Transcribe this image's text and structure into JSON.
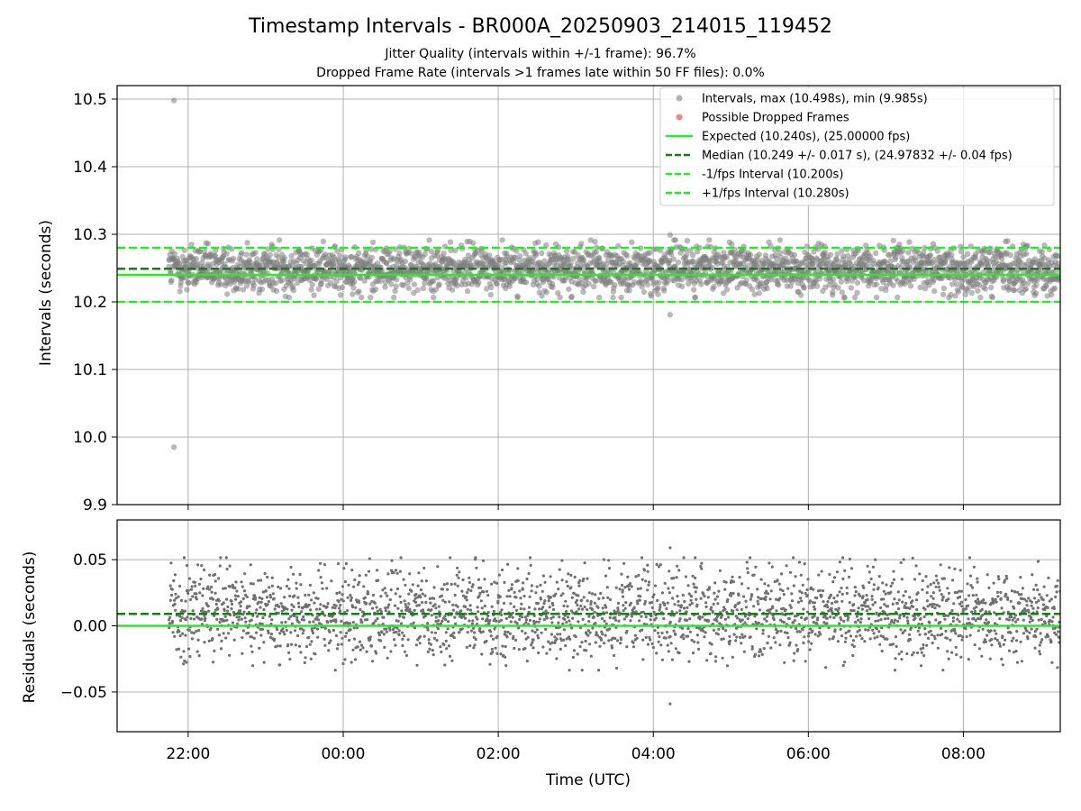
{
  "chart_data": [
    {
      "type": "scatter",
      "title": "Timestamp Intervals - BR000A_20250903_214015_119452",
      "subtitle_1": "Jitter Quality (intervals within +/-1 frame): 96.7%",
      "subtitle_2": "Dropped Frame Rate (intervals >1 frames late within 50 FF files): 0.0%",
      "ylabel": "Intervals (seconds)",
      "xlim": [
        "21:05",
        "09:15"
      ],
      "ylim": [
        9.9,
        10.52
      ],
      "yticks": [
        "9.9",
        "10.0",
        "10.1",
        "10.2",
        "10.3",
        "10.4",
        "10.5"
      ],
      "grid": true,
      "legend_position": "top-right",
      "series": [
        {
          "name": "Intervals, max (10.498s), min (9.985s)",
          "kind": "scatter",
          "color": "#808080",
          "x_start": "21:45",
          "x_end": "09:15",
          "center": 10.249,
          "spread": 0.017,
          "outliers": [
            {
              "x": "21:49",
              "y": 10.498
            },
            {
              "x": "21:49",
              "y": 9.985
            },
            {
              "x": "04:13",
              "y": 10.299
            },
            {
              "x": "04:13",
              "y": 10.181
            }
          ]
        },
        {
          "name": "Possible Dropped Frames",
          "kind": "scatter",
          "color": "#f07070",
          "points": []
        },
        {
          "name": "Expected (10.240s), (25.00000 fps)",
          "kind": "hline",
          "y": 10.24,
          "color": "#22ee22",
          "dash": "solid"
        },
        {
          "name": "Median (10.249 +/- 0.017 s), (24.97832 +/- 0.04 fps)",
          "kind": "hline",
          "y": 10.249,
          "color": "#1a7a1a",
          "dash": "dashed"
        },
        {
          "name": "-1/fps Interval (10.200s)",
          "kind": "hline",
          "y": 10.2,
          "color": "#22ee22",
          "dash": "dashed"
        },
        {
          "name": "+1/fps Interval (10.280s)",
          "kind": "hline",
          "y": 10.28,
          "color": "#22ee22",
          "dash": "dashed"
        }
      ]
    },
    {
      "type": "scatter",
      "xlabel": "Time (UTC)",
      "ylabel": "Residuals (seconds)",
      "xlim": [
        "21:05",
        "09:15"
      ],
      "ylim": [
        -0.08,
        0.08
      ],
      "yticks": [
        "−0.05",
        "0.00",
        "0.05"
      ],
      "xticks": [
        "22:00",
        "00:00",
        "02:00",
        "04:00",
        "06:00",
        "08:00"
      ],
      "grid": true,
      "series": [
        {
          "kind": "scatter",
          "color": "#707070",
          "x_start": "21:45",
          "x_end": "09:15",
          "center": 0.009,
          "spread": 0.017,
          "outliers": [
            {
              "x": "04:13",
              "y": 0.059
            },
            {
              "x": "04:13",
              "y": -0.059
            }
          ]
        },
        {
          "kind": "hline",
          "y": 0.0,
          "color": "#22ee22",
          "dash": "solid"
        },
        {
          "kind": "hline",
          "y": 0.009,
          "color": "#1a7a1a",
          "dash": "dashed"
        }
      ]
    }
  ]
}
